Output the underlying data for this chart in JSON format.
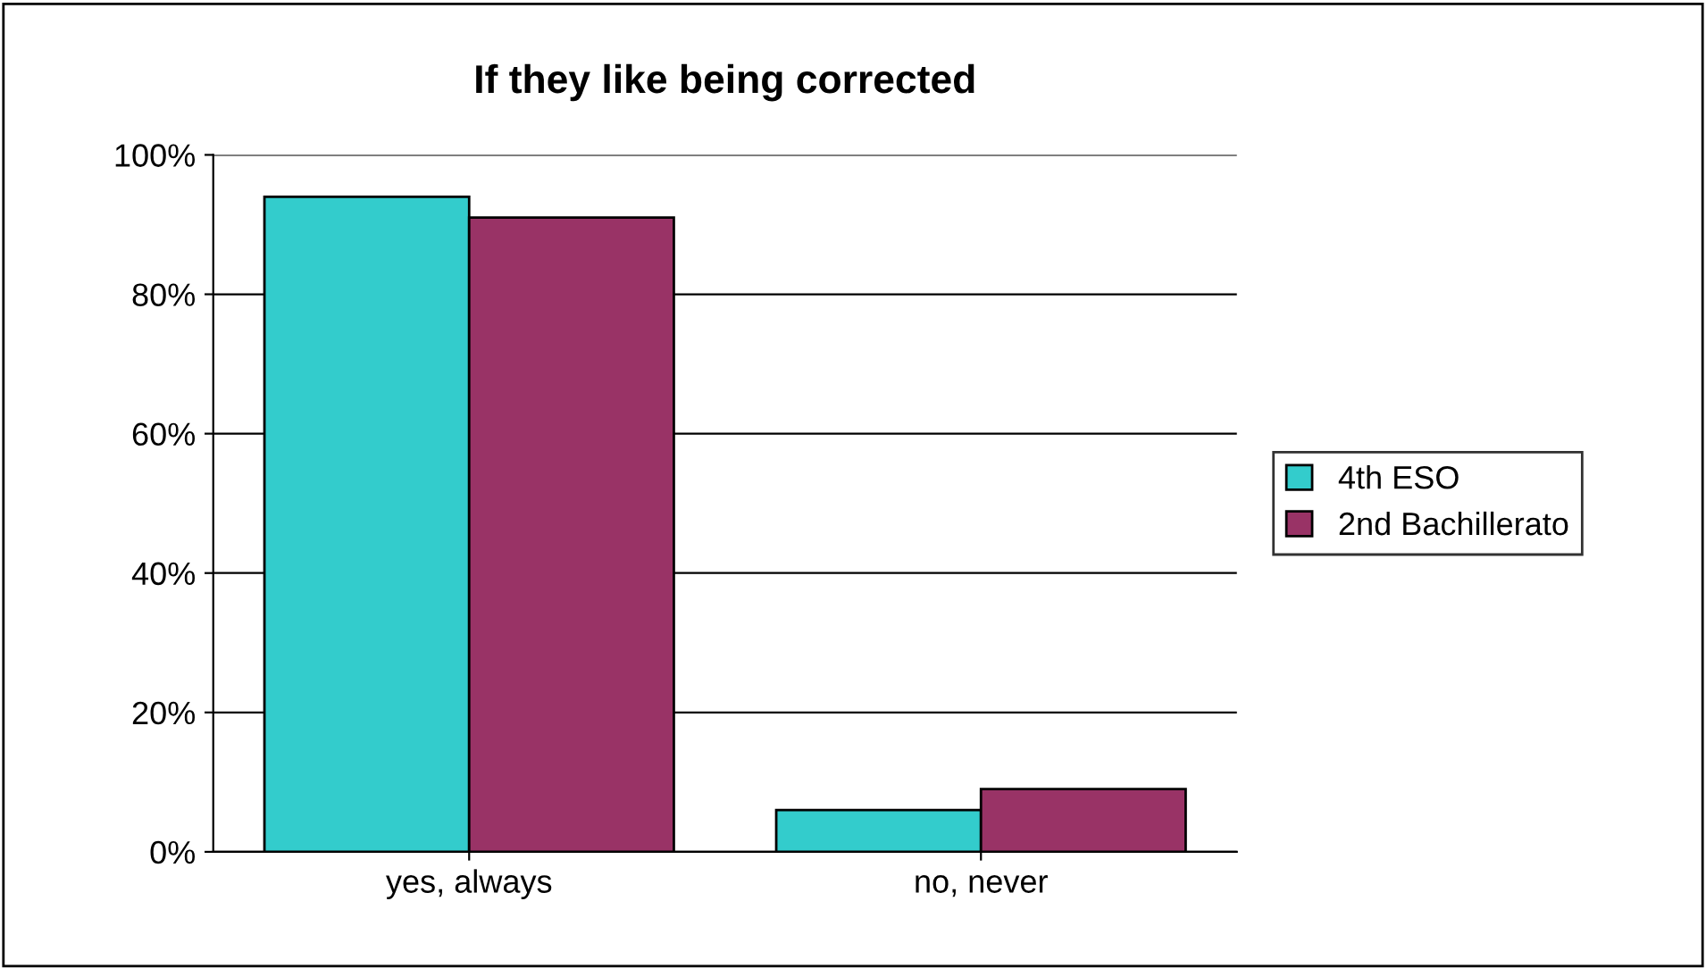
{
  "chart_data": {
    "type": "bar",
    "title": "If they like being corrected",
    "categories": [
      "yes, always",
      "no, never"
    ],
    "series": [
      {
        "name": "4th ESO",
        "color": "#33cccc",
        "values": [
          94,
          6
        ]
      },
      {
        "name": "2nd Bachillerato",
        "color": "#993366",
        "values": [
          91,
          9
        ]
      }
    ],
    "ylim": [
      0,
      100
    ],
    "yticks": [
      {
        "value": 0,
        "label": "0%"
      },
      {
        "value": 20,
        "label": "20%"
      },
      {
        "value": 40,
        "label": "40%"
      },
      {
        "value": 60,
        "label": "60%"
      },
      {
        "value": 80,
        "label": "80%"
      },
      {
        "value": 100,
        "label": "100%"
      }
    ],
    "grid": "y",
    "legend": "right"
  }
}
